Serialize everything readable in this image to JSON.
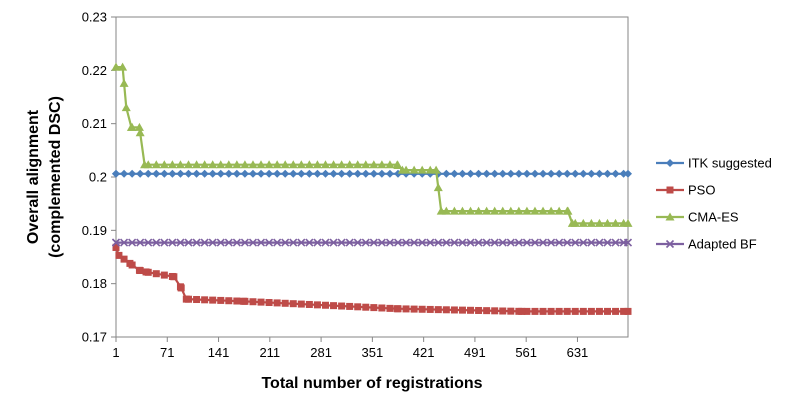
{
  "chart_data": {
    "type": "line",
    "title": "",
    "xlabel": "Total number of registrations",
    "ylabel_lines": [
      "Overall alignment",
      "(complemented DSC)"
    ],
    "xlim": [
      1,
      700
    ],
    "ylim": [
      0.17,
      0.23
    ],
    "x_ticks": [
      1,
      71,
      141,
      211,
      281,
      351,
      421,
      491,
      561,
      631
    ],
    "x_tick_labels": [
      "1",
      "71",
      "141",
      "211",
      "281",
      "351",
      "421",
      "491",
      "561",
      "631"
    ],
    "y_ticks": [
      0.17,
      0.18,
      0.19,
      0.2,
      0.21,
      0.22,
      0.23
    ],
    "y_tick_labels": [
      "0.17",
      "0.18",
      "0.19",
      "0.2",
      "0.21",
      "0.22",
      "0.23"
    ],
    "grid": false,
    "legend_position": "right",
    "marker_spacing": 11,
    "series": [
      {
        "name": "ITK suggested",
        "color": "#4a7ebb",
        "marker": "diamond",
        "points": [
          [
            1,
            0.2006
          ],
          [
            700,
            0.2006
          ]
        ]
      },
      {
        "name": "PSO",
        "color": "#be4b48",
        "marker": "square",
        "points": [
          [
            1,
            0.1868
          ],
          [
            5,
            0.1853
          ],
          [
            20,
            0.1838
          ],
          [
            33,
            0.1825
          ],
          [
            42,
            0.1822
          ],
          [
            80,
            0.1813
          ],
          [
            90,
            0.1792
          ],
          [
            97,
            0.1771
          ],
          [
            175,
            0.1767
          ],
          [
            385,
            0.1753
          ],
          [
            555,
            0.1748
          ],
          [
            700,
            0.1748
          ]
        ]
      },
      {
        "name": "CMA-ES",
        "color": "#98b954",
        "marker": "triangle",
        "points": [
          [
            1,
            0.2206
          ],
          [
            10,
            0.2206
          ],
          [
            15,
            0.213
          ],
          [
            22,
            0.2093
          ],
          [
            33,
            0.2093
          ],
          [
            40,
            0.2023
          ],
          [
            385,
            0.2023
          ],
          [
            392,
            0.2013
          ],
          [
            438,
            0.2013
          ],
          [
            445,
            0.1936
          ],
          [
            618,
            0.1936
          ],
          [
            624,
            0.1913
          ],
          [
            700,
            0.1913
          ]
        ]
      },
      {
        "name": "Adapted BF",
        "color": "#7d60a0",
        "marker": "x",
        "points": [
          [
            1,
            0.1877
          ],
          [
            700,
            0.1877
          ]
        ]
      }
    ]
  }
}
